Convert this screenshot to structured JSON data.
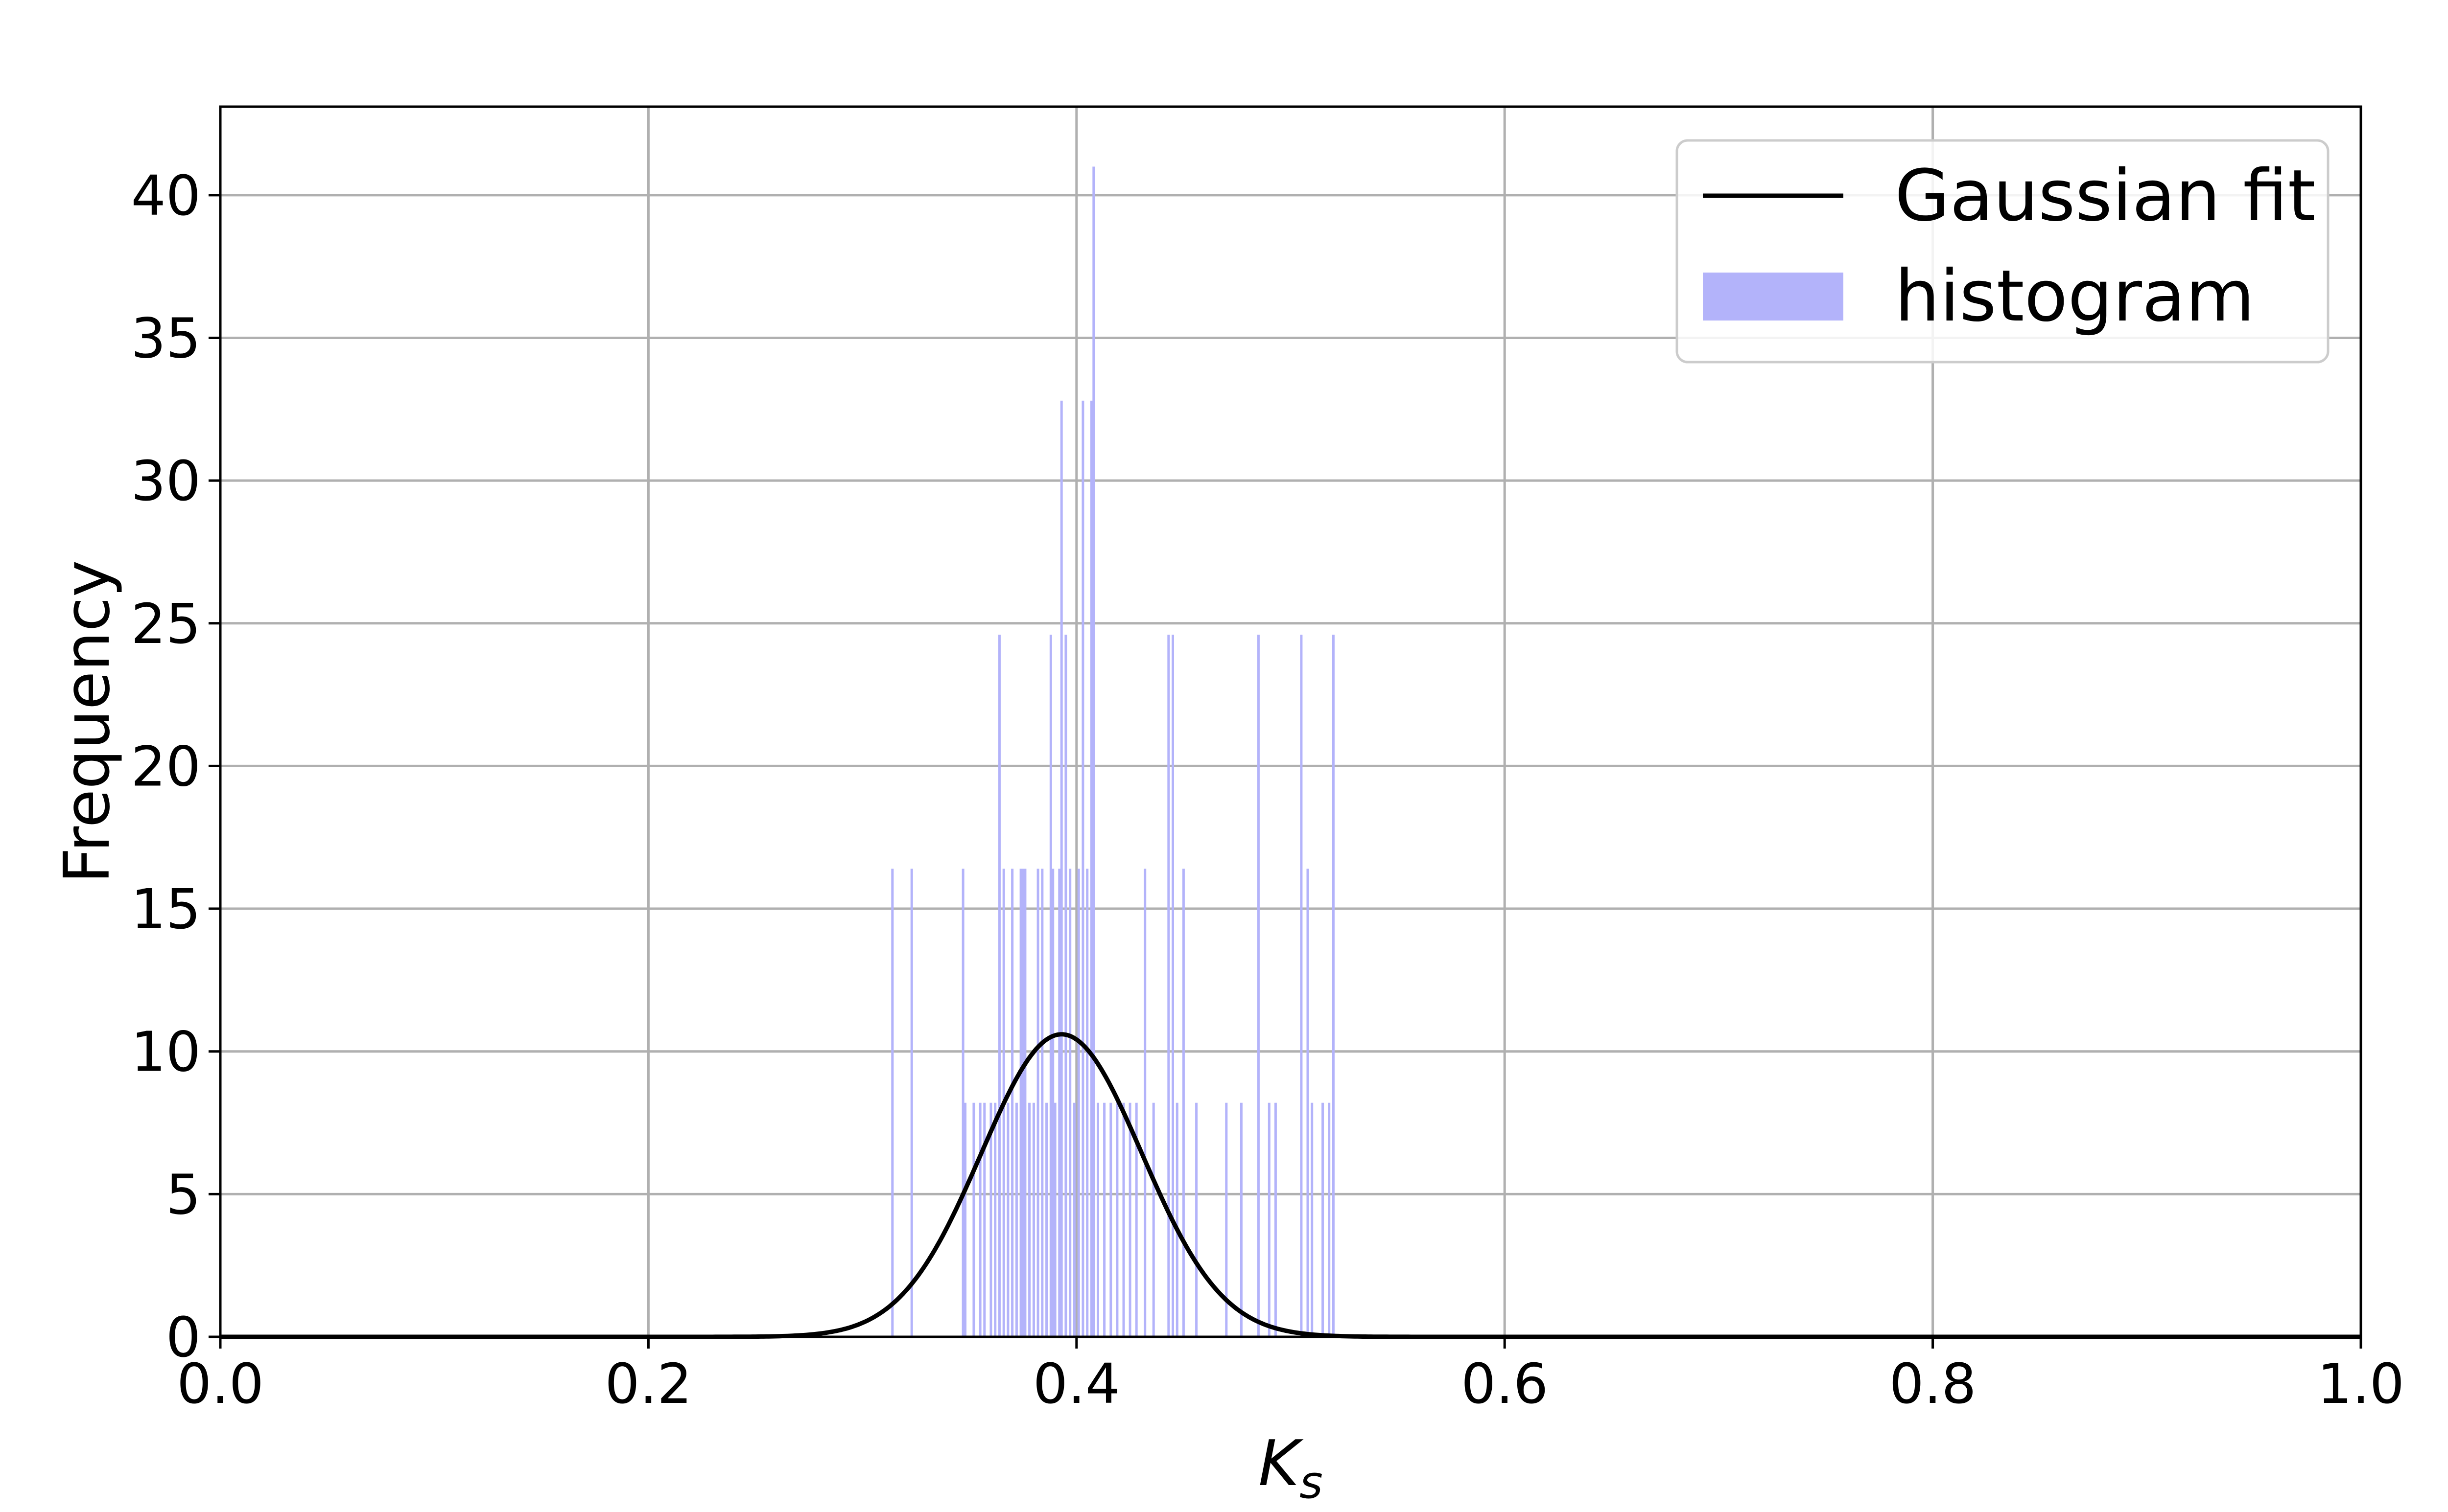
{
  "chart_data": {
    "type": "bar",
    "xlabel_base": "K",
    "xlabel_sub": "s",
    "ylabel": "Frequency",
    "xlim": [
      0.0,
      1.0
    ],
    "ylim": [
      0,
      43.1
    ],
    "x_ticks": [
      "0.0",
      "0.2",
      "0.4",
      "0.6",
      "0.8",
      "1.0"
    ],
    "y_ticks": [
      "0",
      "5",
      "10",
      "15",
      "20",
      "25",
      "30",
      "35",
      "40"
    ],
    "grid": true,
    "legend_position": "top-right",
    "colors": {
      "histogram": "#b3b3fa",
      "fit": "#000000",
      "grid": "#b0b0b0",
      "legend_border": "#cccccc"
    },
    "series": [
      {
        "name": "histogram",
        "kind": "histogram",
        "bin_width": 0.001,
        "bars": [
          {
            "x": 0.314,
            "y": 16.4
          },
          {
            "x": 0.323,
            "y": 16.4
          },
          {
            "x": 0.347,
            "y": 16.4
          },
          {
            "x": 0.348,
            "y": 8.2
          },
          {
            "x": 0.352,
            "y": 8.2
          },
          {
            "x": 0.355,
            "y": 8.2
          },
          {
            "x": 0.357,
            "y": 8.2
          },
          {
            "x": 0.36,
            "y": 8.2
          },
          {
            "x": 0.362,
            "y": 8.2
          },
          {
            "x": 0.364,
            "y": 24.6
          },
          {
            "x": 0.366,
            "y": 16.4
          },
          {
            "x": 0.368,
            "y": 8.2
          },
          {
            "x": 0.37,
            "y": 16.4
          },
          {
            "x": 0.372,
            "y": 8.2
          },
          {
            "x": 0.374,
            "y": 16.4
          },
          {
            "x": 0.375,
            "y": 16.4
          },
          {
            "x": 0.376,
            "y": 16.4
          },
          {
            "x": 0.378,
            "y": 8.2
          },
          {
            "x": 0.38,
            "y": 8.2
          },
          {
            "x": 0.382,
            "y": 16.4
          },
          {
            "x": 0.384,
            "y": 16.4
          },
          {
            "x": 0.386,
            "y": 8.2
          },
          {
            "x": 0.388,
            "y": 24.6
          },
          {
            "x": 0.389,
            "y": 16.4
          },
          {
            "x": 0.39,
            "y": 8.2
          },
          {
            "x": 0.392,
            "y": 16.4
          },
          {
            "x": 0.393,
            "y": 32.8
          },
          {
            "x": 0.395,
            "y": 24.6
          },
          {
            "x": 0.397,
            "y": 16.4
          },
          {
            "x": 0.399,
            "y": 8.2
          },
          {
            "x": 0.401,
            "y": 16.4
          },
          {
            "x": 0.403,
            "y": 32.8
          },
          {
            "x": 0.405,
            "y": 16.4
          },
          {
            "x": 0.407,
            "y": 32.8
          },
          {
            "x": 0.408,
            "y": 41.0
          },
          {
            "x": 0.41,
            "y": 8.2
          },
          {
            "x": 0.413,
            "y": 8.2
          },
          {
            "x": 0.416,
            "y": 8.2
          },
          {
            "x": 0.419,
            "y": 8.2
          },
          {
            "x": 0.422,
            "y": 8.2
          },
          {
            "x": 0.425,
            "y": 8.2
          },
          {
            "x": 0.428,
            "y": 8.2
          },
          {
            "x": 0.432,
            "y": 16.4
          },
          {
            "x": 0.436,
            "y": 8.2
          },
          {
            "x": 0.443,
            "y": 24.6
          },
          {
            "x": 0.445,
            "y": 24.6
          },
          {
            "x": 0.447,
            "y": 8.2
          },
          {
            "x": 0.45,
            "y": 16.4
          },
          {
            "x": 0.456,
            "y": 8.2
          },
          {
            "x": 0.47,
            "y": 8.2
          },
          {
            "x": 0.477,
            "y": 8.2
          },
          {
            "x": 0.485,
            "y": 24.6
          },
          {
            "x": 0.49,
            "y": 8.2
          },
          {
            "x": 0.493,
            "y": 8.2
          },
          {
            "x": 0.505,
            "y": 24.6
          },
          {
            "x": 0.508,
            "y": 16.4
          },
          {
            "x": 0.51,
            "y": 8.2
          },
          {
            "x": 0.515,
            "y": 8.2
          },
          {
            "x": 0.518,
            "y": 8.2
          },
          {
            "x": 0.52,
            "y": 24.6
          }
        ]
      },
      {
        "name": "Gaussian fit",
        "kind": "gaussian",
        "mean": 0.393,
        "std": 0.0375,
        "peak": 10.6,
        "x_range": [
          0.0,
          1.0
        ]
      }
    ],
    "legend": [
      {
        "label": "Gaussian fit",
        "swatch": "line",
        "series": "Gaussian fit"
      },
      {
        "label": "histogram",
        "swatch": "patch",
        "series": "histogram"
      }
    ]
  }
}
